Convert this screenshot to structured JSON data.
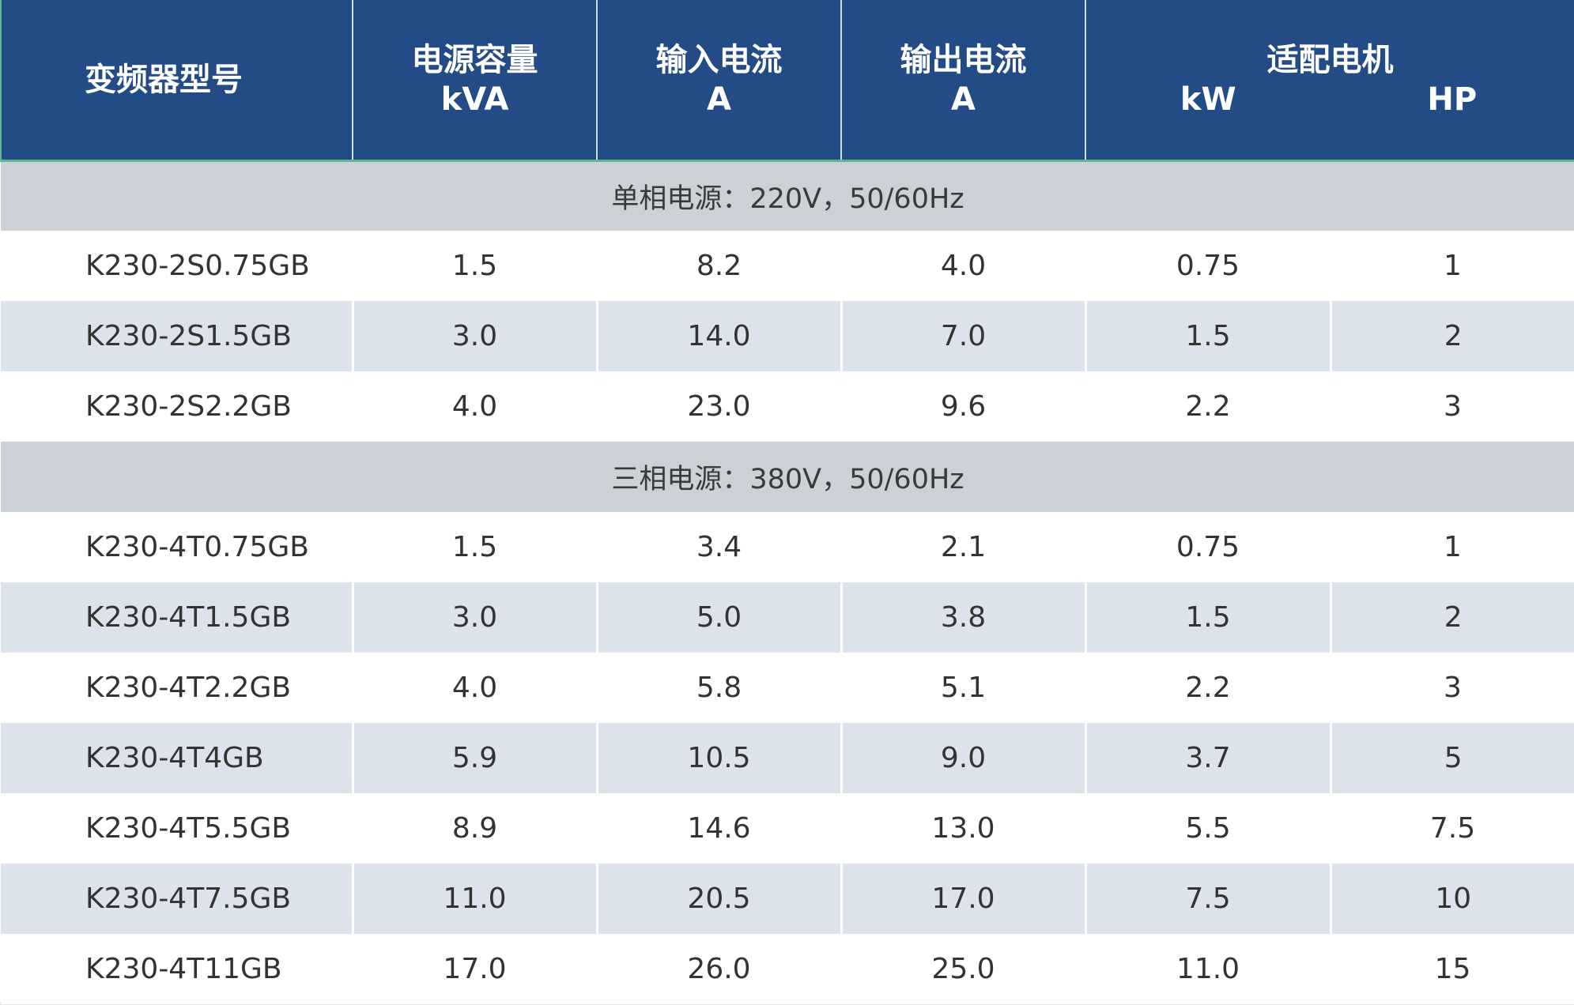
{
  "table": {
    "headers": {
      "model": "变频器型号",
      "capacity": [
        "电源容量",
        "kVA"
      ],
      "input": [
        "输入电流",
        "A"
      ],
      "output": [
        "输出电流",
        "A"
      ],
      "motor": "适配电机",
      "motor_units": [
        "kW",
        "HP"
      ]
    },
    "sections": [
      {
        "title": "单相电源：220V，50/60Hz",
        "rows": [
          [
            "K230-2S0.75GB",
            "1.5",
            "8.2",
            "4.0",
            "0.75",
            "1"
          ],
          [
            "K230-2S1.5GB",
            "3.0",
            "14.0",
            "7.0",
            "1.5",
            "2"
          ],
          [
            "K230-2S2.2GB",
            "4.0",
            "23.0",
            "9.6",
            "2.2",
            "3"
          ]
        ]
      },
      {
        "title": "三相电源：380V，50/60Hz",
        "rows": [
          [
            "K230-4T0.75GB",
            "1.5",
            "3.4",
            "2.1",
            "0.75",
            "1"
          ],
          [
            "K230-4T1.5GB",
            "3.0",
            "5.0",
            "3.8",
            "1.5",
            "2"
          ],
          [
            "K230-4T2.2GB",
            "4.0",
            "5.8",
            "5.1",
            "2.2",
            "3"
          ],
          [
            "K230-4T4GB",
            "5.9",
            "10.5",
            "9.0",
            "3.7",
            "5"
          ],
          [
            "K230-4T5.5GB",
            "8.9",
            "14.6",
            "13.0",
            "5.5",
            "7.5"
          ],
          [
            "K230-4T7.5GB",
            "11.0",
            "20.5",
            "17.0",
            "7.5",
            "10"
          ],
          [
            "K230-4T11GB",
            "17.0",
            "26.0",
            "25.0",
            "11.0",
            "15"
          ]
        ]
      }
    ],
    "colors": {
      "header_bg": "#234b85",
      "section_bg": "#cbd1d6",
      "stripe_bg": "#dde3ec",
      "accent_border": "#60b890"
    }
  }
}
